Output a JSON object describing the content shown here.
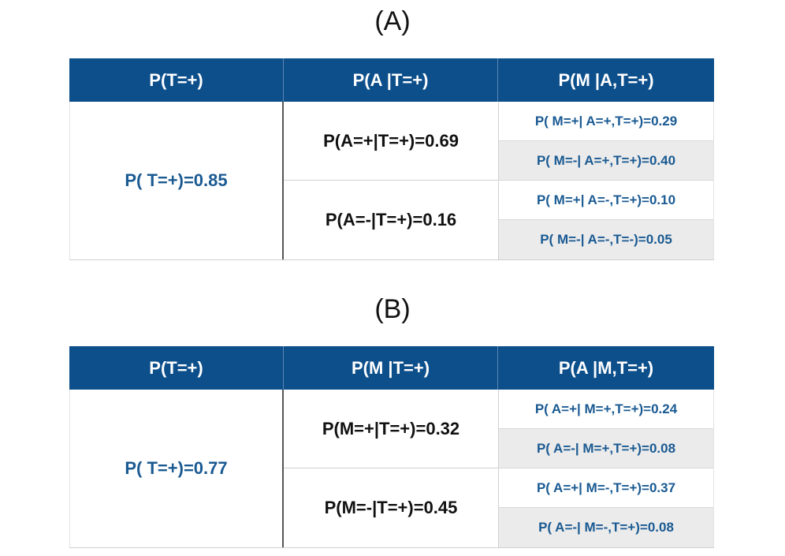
{
  "panel_a": {
    "label": "(A)",
    "headers": [
      "P(T=+)",
      "P(A |T=+)",
      "P(M |A,T=+)"
    ],
    "col1_value": "P( T=+)=0.85",
    "col2_values": [
      "P(A=+|T=+)=0.69",
      "P(A=-|T=+)=0.16"
    ],
    "col3_values": [
      "P( M=+| A=+,T=+)=0.29",
      "P( M=-| A=+,T=+)=0.40",
      "P( M=+| A=-,T=+)=0.10",
      "P( M=-| A=-,T=-)=0.05"
    ]
  },
  "panel_b": {
    "label": "(B)",
    "headers": [
      "P(T=+)",
      "P(M |T=+)",
      "P(A |M,T=+)"
    ],
    "col1_value": "P( T=+)=0.77",
    "col2_values": [
      "P(M=+|T=+)=0.32",
      "P(M=-|T=+)=0.45"
    ],
    "col3_values": [
      "P( A=+| M=+,T=+)=0.24",
      "P( A=-| M=+,T=+)=0.08",
      "P( A=+| M=-,T=+)=0.37",
      "P( A=-| M=-,T=+)=0.08"
    ]
  },
  "colors": {
    "header_bg": "#0d4f8b",
    "header_text": "#ffffff",
    "blue_text": "#1a5a92",
    "shade": "#ebebeb"
  }
}
